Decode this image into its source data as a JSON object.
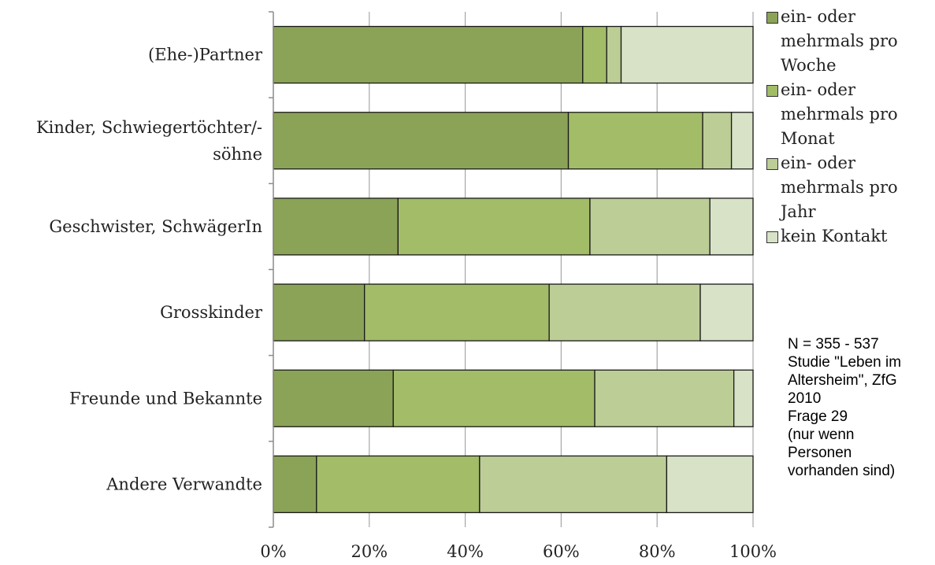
{
  "chart_data": {
    "type": "bar",
    "orientation": "horizontal",
    "stacked": "percent",
    "categories": [
      [
        "(Ehe-)Partner"
      ],
      [
        "Kinder, Schwiegertöchter/-",
        "söhne"
      ],
      [
        "Geschwister, SchwägerIn"
      ],
      [
        "Grosskinder"
      ],
      [
        "Freunde und Bekannte"
      ],
      [
        "Andere Verwandte"
      ]
    ],
    "series": [
      {
        "name": "ein- oder mehrmals pro Woche",
        "legend_lines": [
          "ein- oder",
          "mehrmals pro",
          "Woche"
        ],
        "color": "#8ba357",
        "values": [
          64.5,
          61.5,
          26,
          19,
          25,
          9
        ]
      },
      {
        "name": "ein- oder mehrmals pro Monat",
        "legend_lines": [
          "ein- oder",
          "mehrmals pro",
          "Monat"
        ],
        "color": "#a2bc68",
        "values": [
          5,
          28,
          40,
          38.5,
          42,
          34
        ]
      },
      {
        "name": "ein- oder mehrmals pro Jahr",
        "legend_lines": [
          "ein- oder",
          "mehrmals pro",
          "Jahr"
        ],
        "color": "#bccd96",
        "values": [
          3,
          6,
          25,
          31.5,
          29,
          39
        ]
      },
      {
        "name": "kein Kontakt",
        "legend_lines": [
          "kein Kontakt"
        ],
        "color": "#d7e2c6",
        "values": [
          27.5,
          4.5,
          9,
          11,
          4,
          18
        ]
      }
    ],
    "x_ticks": [
      "0%",
      "20%",
      "40%",
      "60%",
      "80%",
      "100%"
    ],
    "xlim": [
      0,
      100
    ],
    "grid": true,
    "legend_position": "right",
    "annotation": [
      "N = 355 - 537",
      "Studie \"Leben im",
      "Altersheim\", ZfG",
      "2010",
      "Frage 29",
      "(nur wenn",
      "Personen",
      "vorhanden sind)"
    ]
  }
}
